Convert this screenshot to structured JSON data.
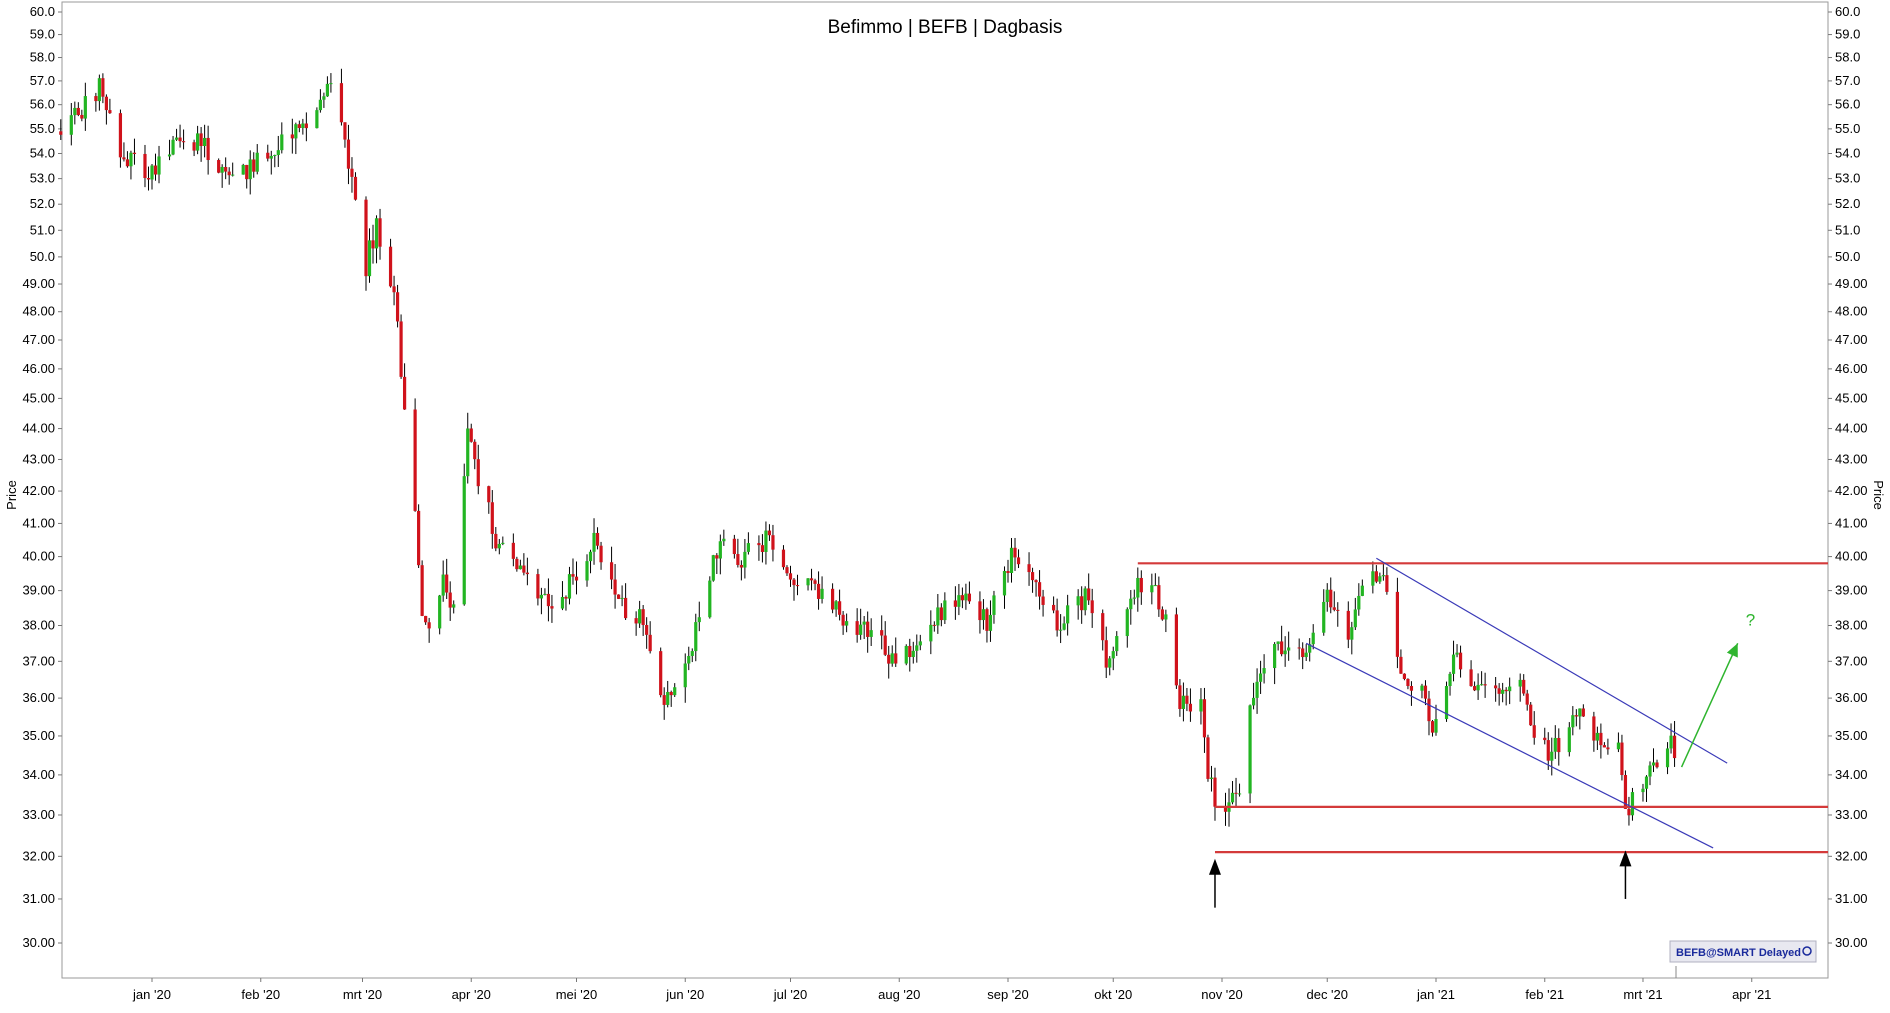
{
  "chart_data": {
    "type": "candlestick",
    "title": "Befimmo | BEFB | Dagbasis",
    "ylabel": "Price",
    "ylim": [
      29.2,
      60.3
    ],
    "scale": "log",
    "y_ticks": [
      "60.0",
      "59.0",
      "58.0",
      "57.0",
      "56.0",
      "55.0",
      "54.0",
      "53.0",
      "52.0",
      "51.0",
      "50.0",
      "49.00",
      "48.00",
      "47.00",
      "46.00",
      "45.00",
      "44.00",
      "43.00",
      "42.00",
      "41.00",
      "40.00",
      "39.00",
      "38.00",
      "37.00",
      "36.00",
      "35.00",
      "34.00",
      "33.00",
      "32.00",
      "31.00",
      "30.00"
    ],
    "x_ticks": [
      {
        "label": "jan '20",
        "date": "2020-01-01"
      },
      {
        "label": "feb '20",
        "date": "2020-02-01"
      },
      {
        "label": "mrt '20",
        "date": "2020-03-01"
      },
      {
        "label": "apr '20",
        "date": "2020-04-01"
      },
      {
        "label": "mei '20",
        "date": "2020-05-01"
      },
      {
        "label": "jun '20",
        "date": "2020-06-01"
      },
      {
        "label": "jul '20",
        "date": "2020-07-01"
      },
      {
        "label": "aug '20",
        "date": "2020-08-01"
      },
      {
        "label": "sep '20",
        "date": "2020-09-01"
      },
      {
        "label": "okt '20",
        "date": "2020-10-01"
      },
      {
        "label": "nov '20",
        "date": "2020-11-01"
      },
      {
        "label": "dec '20",
        "date": "2020-12-01"
      },
      {
        "label": "jan '21",
        "date": "2021-01-01"
      },
      {
        "label": "feb '21",
        "date": "2021-02-01"
      },
      {
        "label": "mrt '21",
        "date": "2021-03-01"
      },
      {
        "label": "apr '21",
        "date": "2021-04-01"
      }
    ],
    "colors": {
      "up": "#22b522",
      "down": "#d0121b",
      "wick": "#000000",
      "support": "#d43a3a",
      "channel": "#3a3ab8",
      "projection": "#2fb52f",
      "grid_frame": "#a0a0a0"
    },
    "series": [
      {
        "date": "2019-12-06",
        "close": 54.9
      },
      {
        "date": "2019-12-13",
        "close": 55.9
      },
      {
        "date": "2019-12-17",
        "close": 56.8
      },
      {
        "date": "2019-12-20",
        "close": 55.4
      },
      {
        "date": "2019-12-24",
        "close": 53.8
      },
      {
        "date": "2019-12-31",
        "close": 53.2
      },
      {
        "date": "2020-01-07",
        "close": 54.1
      },
      {
        "date": "2020-01-14",
        "close": 54.6
      },
      {
        "date": "2020-01-21",
        "close": 53.2
      },
      {
        "date": "2020-01-28",
        "close": 53.3
      },
      {
        "date": "2020-02-04",
        "close": 54.1
      },
      {
        "date": "2020-02-11",
        "close": 55.0
      },
      {
        "date": "2020-02-18",
        "close": 56.2
      },
      {
        "date": "2020-02-21",
        "close": 56.6
      },
      {
        "date": "2020-02-24",
        "close": 55.4
      },
      {
        "date": "2020-02-27",
        "close": 52.6
      },
      {
        "date": "2020-03-02",
        "close": 49.7
      },
      {
        "date": "2020-03-05",
        "close": 51.2
      },
      {
        "date": "2020-03-10",
        "close": 48.6
      },
      {
        "date": "2020-03-13",
        "close": 44.5
      },
      {
        "date": "2020-03-16",
        "close": 41.5
      },
      {
        "date": "2020-03-18",
        "close": 38.2
      },
      {
        "date": "2020-03-20",
        "close": 37.6
      },
      {
        "date": "2020-03-24",
        "close": 39.2
      },
      {
        "date": "2020-03-27",
        "close": 38.5
      },
      {
        "date": "2020-03-31",
        "close": 43.8
      },
      {
        "date": "2020-04-03",
        "close": 42.5
      },
      {
        "date": "2020-04-08",
        "close": 40.5
      },
      {
        "date": "2020-04-15",
        "close": 39.4
      },
      {
        "date": "2020-04-22",
        "close": 38.6
      },
      {
        "date": "2020-04-29",
        "close": 39.2
      },
      {
        "date": "2020-05-06",
        "close": 40.6
      },
      {
        "date": "2020-05-13",
        "close": 38.5
      },
      {
        "date": "2020-05-20",
        "close": 38.2
      },
      {
        "date": "2020-05-25",
        "close": 36.3
      },
      {
        "date": "2020-05-28",
        "close": 35.8
      },
      {
        "date": "2020-06-03",
        "close": 37.5
      },
      {
        "date": "2020-06-10",
        "close": 40.3
      },
      {
        "date": "2020-06-17",
        "close": 39.9
      },
      {
        "date": "2020-06-24",
        "close": 40.6
      },
      {
        "date": "2020-07-01",
        "close": 39.3
      },
      {
        "date": "2020-07-08",
        "close": 39.0
      },
      {
        "date": "2020-07-15",
        "close": 38.3
      },
      {
        "date": "2020-07-22",
        "close": 37.9
      },
      {
        "date": "2020-07-29",
        "close": 37.2
      },
      {
        "date": "2020-08-05",
        "close": 37.3
      },
      {
        "date": "2020-08-12",
        "close": 38.3
      },
      {
        "date": "2020-08-19",
        "close": 39.0
      },
      {
        "date": "2020-08-26",
        "close": 38.0
      },
      {
        "date": "2020-09-02",
        "close": 40.0
      },
      {
        "date": "2020-09-09",
        "close": 39.0
      },
      {
        "date": "2020-09-16",
        "close": 38.0
      },
      {
        "date": "2020-09-23",
        "close": 38.9
      },
      {
        "date": "2020-09-30",
        "close": 36.8
      },
      {
        "date": "2020-10-06",
        "close": 38.8
      },
      {
        "date": "2020-10-12",
        "close": 39.5
      },
      {
        "date": "2020-10-16",
        "close": 38.0
      },
      {
        "date": "2020-10-20",
        "close": 36.0
      },
      {
        "date": "2020-10-26",
        "close": 35.8
      },
      {
        "date": "2020-10-28",
        "close": 34.2
      },
      {
        "date": "2020-10-30",
        "close": 33.1
      },
      {
        "date": "2020-11-03",
        "close": 33.3
      },
      {
        "date": "2020-11-06",
        "close": 33.7
      },
      {
        "date": "2020-11-09",
        "close": 35.6
      },
      {
        "date": "2020-11-12",
        "close": 36.9
      },
      {
        "date": "2020-11-18",
        "close": 37.4
      },
      {
        "date": "2020-11-24",
        "close": 37.3
      },
      {
        "date": "2020-12-01",
        "close": 38.8
      },
      {
        "date": "2020-12-07",
        "close": 37.8
      },
      {
        "date": "2020-12-10",
        "close": 38.8
      },
      {
        "date": "2020-12-15",
        "close": 39.6
      },
      {
        "date": "2020-12-18",
        "close": 38.9
      },
      {
        "date": "2020-12-22",
        "close": 36.9
      },
      {
        "date": "2020-12-28",
        "close": 36.1
      },
      {
        "date": "2020-12-31",
        "close": 35.3
      },
      {
        "date": "2021-01-06",
        "close": 37.1
      },
      {
        "date": "2021-01-12",
        "close": 36.3
      },
      {
        "date": "2021-01-18",
        "close": 36.2
      },
      {
        "date": "2021-01-25",
        "close": 36.3
      },
      {
        "date": "2021-01-29",
        "close": 35.0
      },
      {
        "date": "2021-02-03",
        "close": 34.5
      },
      {
        "date": "2021-02-08",
        "close": 35.4
      },
      {
        "date": "2021-02-12",
        "close": 35.8
      },
      {
        "date": "2021-02-17",
        "close": 34.7
      },
      {
        "date": "2021-02-22",
        "close": 34.8
      },
      {
        "date": "2021-02-24",
        "close": 33.2
      },
      {
        "date": "2021-02-26",
        "close": 33.3
      },
      {
        "date": "2021-03-02",
        "close": 34.0
      },
      {
        "date": "2021-03-05",
        "close": 34.4
      },
      {
        "date": "2021-03-09",
        "close": 34.7
      },
      {
        "date": "2021-03-11",
        "close": 34.2
      }
    ],
    "annotations": {
      "resistance": {
        "price": 39.8,
        "start_date": "2020-10-08",
        "end_date": "2021-04-30"
      },
      "support_1": {
        "price": 33.2,
        "start_date": "2020-10-30",
        "end_date": "2021-04-30"
      },
      "support_2": {
        "price": 32.1,
        "start_date": "2020-10-30",
        "end_date": "2021-04-30"
      },
      "channel_upper": [
        {
          "date": "2020-12-15",
          "price": 39.95
        },
        {
          "date": "2021-03-25",
          "price": 34.3
        }
      ],
      "channel_lower": [
        {
          "date": "2020-11-25",
          "price": 37.5
        },
        {
          "date": "2021-03-21",
          "price": 32.2
        }
      ],
      "projection": [
        {
          "date": "2021-03-12",
          "price": 34.2
        },
        {
          "date": "2021-03-28",
          "price": 37.5
        }
      ],
      "projection_label": "?",
      "arrows_up": [
        {
          "date": "2020-10-30",
          "from": 30.8,
          "to": 31.8
        },
        {
          "date": "2021-02-24",
          "from": 31.0,
          "to": 32.0
        }
      ]
    },
    "watermark": "BEFB@SMART Delayed"
  }
}
